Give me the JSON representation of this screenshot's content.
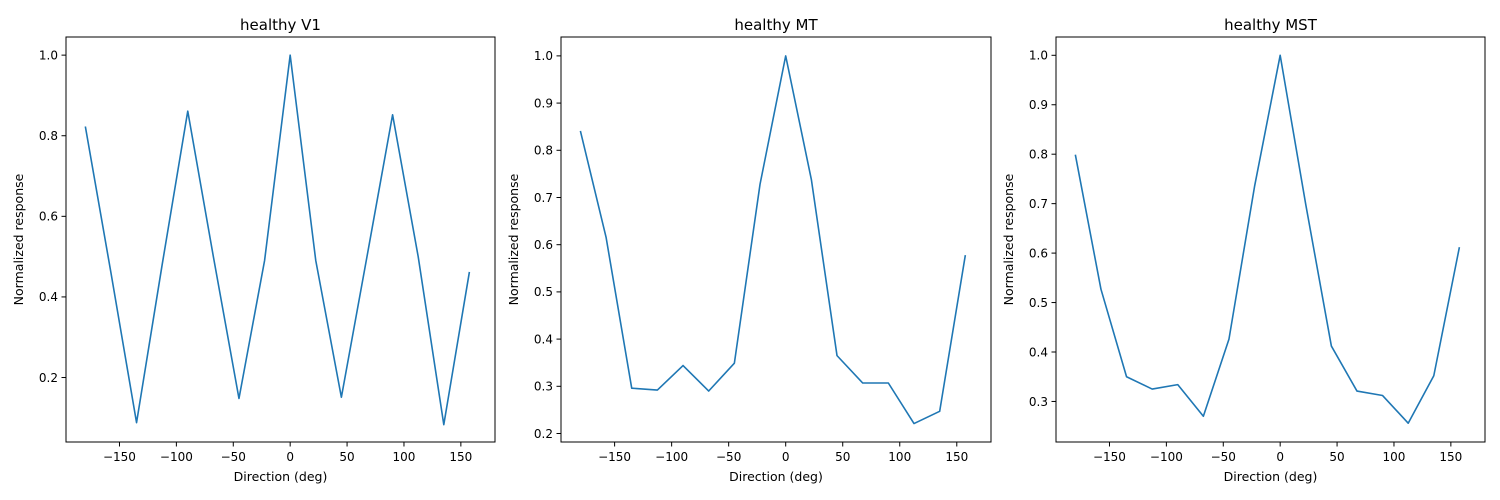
{
  "chart_data": [
    {
      "type": "line",
      "title": "healthy V1",
      "xlabel": "Direction (deg)",
      "ylabel": "Normalized response",
      "xlim": [
        -197,
        180
      ],
      "ylim": [
        0.04,
        1.045
      ],
      "xticks": [
        -150,
        -100,
        -50,
        0,
        50,
        100,
        150
      ],
      "xtick_labels": [
        "−150",
        "−100",
        "−50",
        "0",
        "50",
        "100",
        "150"
      ],
      "yticks": [
        0.2,
        0.4,
        0.6,
        0.8,
        1.0
      ],
      "ytick_labels": [
        "0.2",
        "0.4",
        "0.6",
        "0.8",
        "1.0"
      ],
      "grid": false,
      "series": [
        {
          "color": "#1f77b4",
          "x": [
            -180,
            -157.5,
            -135,
            -112.5,
            -90,
            -67.5,
            -45,
            -22.5,
            0,
            22.5,
            45,
            67.5,
            90,
            112.5,
            135,
            157.5
          ],
          "y": [
            0.823,
            0.46,
            0.088,
            0.48,
            0.861,
            0.5,
            0.148,
            0.49,
            1.0,
            0.49,
            0.151,
            0.5,
            0.852,
            0.5,
            0.083,
            0.462
          ]
        }
      ]
    },
    {
      "type": "line",
      "title": "healthy MT",
      "xlabel": "Direction (deg)",
      "ylabel": "Normalized response",
      "xlim": [
        -197,
        180
      ],
      "ylim": [
        0.182,
        1.04
      ],
      "xticks": [
        -150,
        -100,
        -50,
        0,
        50,
        100,
        150
      ],
      "xtick_labels": [
        "−150",
        "−100",
        "−50",
        "0",
        "50",
        "100",
        "150"
      ],
      "yticks": [
        0.2,
        0.3,
        0.4,
        0.5,
        0.6,
        0.7,
        0.8,
        0.9,
        1.0
      ],
      "ytick_labels": [
        "0.2",
        "0.3",
        "0.4",
        "0.5",
        "0.6",
        "0.7",
        "0.8",
        "0.9",
        "1.0"
      ],
      "grid": false,
      "series": [
        {
          "color": "#1f77b4",
          "x": [
            -180,
            -157.5,
            -135,
            -112.5,
            -90,
            -67.5,
            -45,
            -22.5,
            0,
            22.5,
            45,
            67.5,
            90,
            112.5,
            135,
            157.5
          ],
          "y": [
            0.841,
            0.616,
            0.296,
            0.292,
            0.344,
            0.29,
            0.349,
            0.728,
            1.0,
            0.738,
            0.365,
            0.307,
            0.307,
            0.221,
            0.247,
            0.578
          ]
        }
      ]
    },
    {
      "type": "line",
      "title": "healthy MST",
      "xlabel": "Direction (deg)",
      "ylabel": "Normalized response",
      "xlim": [
        -197,
        180
      ],
      "ylim": [
        0.218,
        1.037
      ],
      "xticks": [
        -150,
        -100,
        -50,
        0,
        50,
        100,
        150
      ],
      "xtick_labels": [
        "−150",
        "−100",
        "−50",
        "0",
        "50",
        "100",
        "150"
      ],
      "yticks": [
        0.3,
        0.4,
        0.5,
        0.6,
        0.7,
        0.8,
        0.9,
        1.0
      ],
      "ytick_labels": [
        "0.3",
        "0.4",
        "0.5",
        "0.6",
        "0.7",
        "0.8",
        "0.9",
        "1.0"
      ],
      "grid": false,
      "series": [
        {
          "color": "#1f77b4",
          "x": [
            -180,
            -157.5,
            -135,
            -112.5,
            -90,
            -67.5,
            -45,
            -22.5,
            0,
            22.5,
            45,
            67.5,
            90,
            112.5,
            135,
            157.5
          ],
          "y": [
            0.799,
            0.527,
            0.35,
            0.325,
            0.334,
            0.27,
            0.426,
            0.735,
            1.0,
            0.698,
            0.412,
            0.321,
            0.312,
            0.256,
            0.352,
            0.612
          ]
        }
      ]
    }
  ]
}
